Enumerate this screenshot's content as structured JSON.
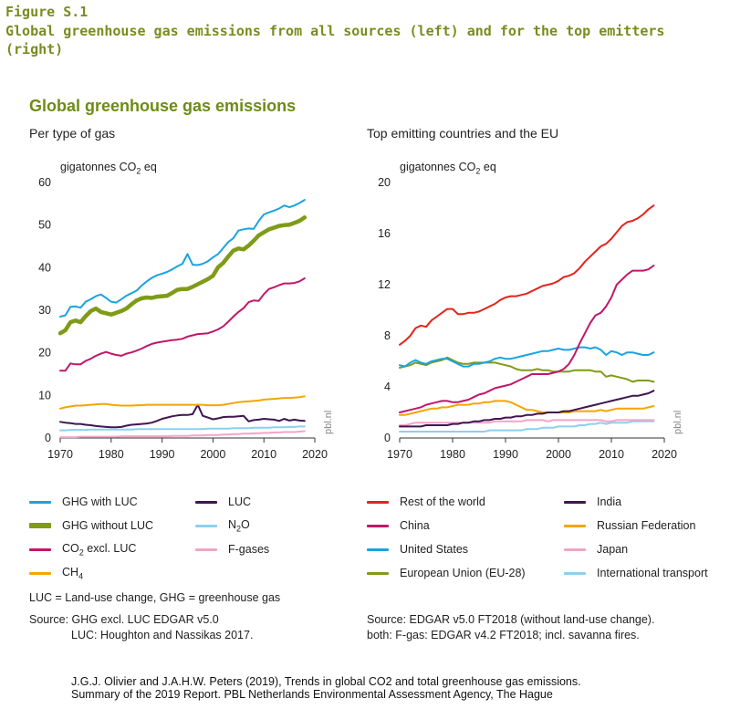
{
  "figure": {
    "label": "Figure S.1",
    "title": "Global greenhouse gas emissions from all sources (left) and for the top emitters (right)"
  },
  "section_title": "Global greenhouse gas emissions",
  "left": {
    "subtitle": "Per type of gas",
    "units_prefix": "gigatonnes CO",
    "units_sub": "2",
    "units_suffix": " eq",
    "watermark": "pbl.nl"
  },
  "right": {
    "subtitle": "Top emitting countries and the EU",
    "units_prefix": "gigatonnes CO",
    "units_sub": "2",
    "units_suffix": " eq",
    "watermark": "pbl.nl"
  },
  "chart_data": [
    {
      "type": "line",
      "title": "Per type of gas",
      "ylabel": "gigatonnes CO2 eq",
      "xlim": [
        1970,
        2020
      ],
      "ylim": [
        0,
        60
      ],
      "xticks": [
        1970,
        1980,
        1990,
        2000,
        2010,
        2020
      ],
      "yticks": [
        0,
        10,
        20,
        30,
        40,
        50,
        60
      ],
      "grid": false,
      "legend": "below",
      "x": [
        1970,
        1971,
        1972,
        1973,
        1974,
        1975,
        1976,
        1977,
        1978,
        1979,
        1980,
        1981,
        1982,
        1983,
        1984,
        1985,
        1986,
        1987,
        1988,
        1989,
        1990,
        1991,
        1992,
        1993,
        1994,
        1995,
        1996,
        1997,
        1998,
        1999,
        2000,
        2001,
        2002,
        2003,
        2004,
        2005,
        2006,
        2007,
        2008,
        2009,
        2010,
        2011,
        2012,
        2013,
        2014,
        2015,
        2016,
        2017,
        2018
      ],
      "series": [
        {
          "name": "GHG with LUC",
          "color": "#1ba3de",
          "values": [
            28.5,
            28.8,
            30.8,
            30.9,
            30.6,
            32.0,
            32.6,
            33.3,
            33.7,
            32.9,
            32.0,
            31.8,
            32.6,
            33.4,
            34.0,
            34.6,
            35.8,
            36.8,
            37.6,
            38.2,
            38.6,
            39.0,
            39.6,
            40.3,
            40.9,
            43.2,
            40.7,
            40.6,
            40.9,
            41.5,
            42.4,
            43.2,
            44.6,
            46.0,
            46.9,
            48.7,
            49.0,
            49.2,
            49.1,
            51.0,
            52.5,
            53.0,
            53.4,
            53.9,
            54.6,
            54.2,
            54.6,
            55.2,
            55.9
          ]
        },
        {
          "name": "GHG without LUC",
          "color": "#7f9b17",
          "width": "thick",
          "values": [
            24.6,
            25.3,
            27.2,
            27.6,
            27.2,
            28.6,
            29.8,
            30.4,
            29.6,
            29.3,
            29.0,
            29.4,
            29.8,
            30.4,
            31.4,
            32.3,
            32.8,
            33.0,
            32.9,
            33.2,
            33.3,
            33.4,
            34.1,
            34.8,
            35.0,
            35.0,
            35.5,
            36.1,
            36.7,
            37.3,
            38.1,
            40.1,
            41.1,
            42.6,
            44.0,
            44.5,
            44.3,
            45.2,
            46.3,
            47.6,
            48.3,
            49.0,
            49.4,
            49.8,
            50.0,
            50.1,
            50.5,
            51.0,
            51.8
          ]
        },
        {
          "name": "CO2 excl. LUC",
          "label_main": "CO",
          "label_sub": "2",
          "label_suffix": " excl. LUC",
          "color": "#c2166a",
          "values": [
            15.8,
            15.8,
            17.5,
            17.3,
            17.3,
            18.1,
            18.6,
            19.3,
            19.8,
            20.2,
            19.8,
            19.5,
            19.3,
            19.8,
            20.1,
            20.5,
            21.0,
            21.6,
            22.1,
            22.4,
            22.6,
            22.8,
            23.0,
            23.1,
            23.3,
            23.8,
            24.1,
            24.4,
            24.5,
            24.6,
            25.0,
            25.5,
            26.2,
            27.3,
            28.5,
            29.6,
            30.5,
            31.9,
            32.3,
            32.2,
            33.8,
            35.0,
            35.4,
            35.9,
            36.3,
            36.3,
            36.4,
            36.8,
            37.5
          ]
        },
        {
          "name": "CH4",
          "label_main": "CH",
          "label_sub": "4",
          "label_suffix": "",
          "color": "#f5a500",
          "values": [
            6.9,
            7.2,
            7.4,
            7.6,
            7.6,
            7.7,
            7.8,
            7.9,
            8.0,
            8.0,
            7.8,
            7.7,
            7.6,
            7.6,
            7.6,
            7.7,
            7.7,
            7.8,
            7.8,
            7.8,
            7.8,
            7.8,
            7.8,
            7.8,
            7.8,
            7.8,
            7.8,
            7.8,
            7.8,
            7.7,
            7.7,
            7.7,
            7.8,
            8.0,
            8.2,
            8.4,
            8.5,
            8.6,
            8.7,
            8.8,
            9.0,
            9.1,
            9.2,
            9.3,
            9.4,
            9.4,
            9.5,
            9.6,
            9.8
          ]
        },
        {
          "name": "LUC",
          "color": "#3e1651",
          "values": [
            3.8,
            3.6,
            3.5,
            3.3,
            3.3,
            3.1,
            3.0,
            2.8,
            2.7,
            2.6,
            2.5,
            2.5,
            2.6,
            2.9,
            3.1,
            3.2,
            3.3,
            3.4,
            3.6,
            4.0,
            4.5,
            4.8,
            5.1,
            5.3,
            5.4,
            5.4,
            5.6,
            7.8,
            5.2,
            4.8,
            4.4,
            4.6,
            4.9,
            5.0,
            5.0,
            5.1,
            5.2,
            3.9,
            4.2,
            4.3,
            4.5,
            4.4,
            4.3,
            4.0,
            4.5,
            4.1,
            4.3,
            4.1,
            4.0
          ]
        },
        {
          "name": "N2O",
          "label_main": "N",
          "label_sub": "2",
          "label_suffix": "O",
          "color": "#8dcfef",
          "values": [
            1.8,
            1.8,
            1.9,
            1.9,
            1.9,
            1.9,
            2.0,
            2.0,
            2.0,
            2.0,
            2.0,
            2.0,
            2.0,
            2.0,
            2.0,
            2.1,
            2.1,
            2.1,
            2.1,
            2.1,
            2.1,
            2.1,
            2.1,
            2.1,
            2.1,
            2.1,
            2.1,
            2.1,
            2.1,
            2.2,
            2.2,
            2.2,
            2.2,
            2.2,
            2.3,
            2.3,
            2.3,
            2.3,
            2.4,
            2.4,
            2.4,
            2.4,
            2.5,
            2.5,
            2.5,
            2.6,
            2.6,
            2.7,
            2.7
          ]
        },
        {
          "name": "F-gases",
          "color": "#f2a4c8",
          "values": [
            0.2,
            0.2,
            0.2,
            0.2,
            0.3,
            0.3,
            0.3,
            0.3,
            0.3,
            0.3,
            0.3,
            0.3,
            0.4,
            0.4,
            0.4,
            0.4,
            0.4,
            0.4,
            0.4,
            0.4,
            0.4,
            0.4,
            0.5,
            0.5,
            0.5,
            0.5,
            0.6,
            0.6,
            0.6,
            0.7,
            0.7,
            0.7,
            0.8,
            0.8,
            0.9,
            0.9,
            1.0,
            1.0,
            1.1,
            1.1,
            1.2,
            1.2,
            1.3,
            1.3,
            1.4,
            1.4,
            1.4,
            1.5,
            1.6
          ]
        }
      ]
    },
    {
      "type": "line",
      "title": "Top emitting countries and the EU",
      "ylabel": "gigatonnes CO2 eq",
      "xlim": [
        1970,
        2020
      ],
      "ylim": [
        0,
        20
      ],
      "xticks": [
        1970,
        1980,
        1990,
        2000,
        2010,
        2020
      ],
      "yticks": [
        0,
        4,
        8,
        12,
        16,
        20
      ],
      "grid": false,
      "legend": "below",
      "x": [
        1970,
        1971,
        1972,
        1973,
        1974,
        1975,
        1976,
        1977,
        1978,
        1979,
        1980,
        1981,
        1982,
        1983,
        1984,
        1985,
        1986,
        1987,
        1988,
        1989,
        1990,
        1991,
        1992,
        1993,
        1994,
        1995,
        1996,
        1997,
        1998,
        1999,
        2000,
        2001,
        2002,
        2003,
        2004,
        2005,
        2006,
        2007,
        2008,
        2009,
        2010,
        2011,
        2012,
        2013,
        2014,
        2015,
        2016,
        2017,
        2018
      ],
      "series": [
        {
          "name": "Rest of the world",
          "color": "#e3241b",
          "values": [
            7.3,
            7.6,
            8.0,
            8.6,
            8.8,
            8.7,
            9.2,
            9.5,
            9.8,
            10.1,
            10.1,
            9.7,
            9.7,
            9.8,
            9.8,
            9.9,
            10.1,
            10.3,
            10.5,
            10.8,
            11.0,
            11.1,
            11.1,
            11.2,
            11.3,
            11.5,
            11.7,
            11.9,
            12.0,
            12.1,
            12.3,
            12.6,
            12.7,
            12.9,
            13.3,
            13.8,
            14.2,
            14.6,
            15.0,
            15.2,
            15.6,
            16.1,
            16.6,
            16.9,
            17.0,
            17.2,
            17.5,
            17.9,
            18.2
          ]
        },
        {
          "name": "China",
          "color": "#c2166a",
          "values": [
            2.0,
            2.1,
            2.2,
            2.3,
            2.4,
            2.6,
            2.7,
            2.8,
            2.9,
            2.9,
            2.8,
            2.8,
            2.9,
            3.0,
            3.2,
            3.4,
            3.5,
            3.7,
            3.9,
            4.0,
            4.1,
            4.2,
            4.4,
            4.6,
            4.8,
            5.0,
            5.0,
            5.0,
            5.0,
            5.1,
            5.2,
            5.4,
            5.8,
            6.5,
            7.4,
            8.2,
            9.0,
            9.6,
            9.8,
            10.3,
            11.0,
            12.0,
            12.4,
            12.8,
            13.1,
            13.1,
            13.1,
            13.2,
            13.5
          ]
        },
        {
          "name": "United States",
          "color": "#1ba3de",
          "values": [
            5.7,
            5.6,
            5.9,
            6.1,
            5.9,
            5.8,
            6.0,
            6.1,
            6.2,
            6.2,
            6.0,
            5.8,
            5.6,
            5.6,
            5.8,
            5.8,
            5.9,
            6.0,
            6.2,
            6.3,
            6.2,
            6.2,
            6.3,
            6.4,
            6.5,
            6.6,
            6.7,
            6.8,
            6.8,
            6.9,
            7.0,
            6.9,
            6.9,
            7.0,
            7.1,
            7.1,
            7.0,
            7.1,
            6.9,
            6.5,
            6.8,
            6.7,
            6.5,
            6.7,
            6.7,
            6.6,
            6.5,
            6.5,
            6.7
          ]
        },
        {
          "name": "European Union (EU-28)",
          "color": "#7f9b17",
          "values": [
            5.5,
            5.6,
            5.7,
            5.9,
            5.8,
            5.7,
            5.9,
            6.0,
            6.1,
            6.3,
            6.1,
            5.9,
            5.8,
            5.8,
            5.9,
            5.9,
            5.9,
            5.9,
            5.9,
            5.8,
            5.7,
            5.6,
            5.4,
            5.3,
            5.3,
            5.3,
            5.4,
            5.3,
            5.3,
            5.2,
            5.2,
            5.2,
            5.2,
            5.3,
            5.3,
            5.3,
            5.3,
            5.2,
            5.2,
            4.8,
            4.9,
            4.8,
            4.7,
            4.6,
            4.4,
            4.5,
            4.5,
            4.5,
            4.4
          ]
        },
        {
          "name": "India",
          "color": "#3e1651",
          "values": [
            0.9,
            0.9,
            0.9,
            0.9,
            0.9,
            1.0,
            1.0,
            1.0,
            1.0,
            1.0,
            1.1,
            1.1,
            1.2,
            1.2,
            1.3,
            1.3,
            1.4,
            1.4,
            1.5,
            1.5,
            1.6,
            1.6,
            1.7,
            1.7,
            1.8,
            1.8,
            1.9,
            1.9,
            2.0,
            2.0,
            2.0,
            2.1,
            2.1,
            2.2,
            2.3,
            2.4,
            2.5,
            2.6,
            2.7,
            2.8,
            2.9,
            3.0,
            3.1,
            3.2,
            3.3,
            3.3,
            3.4,
            3.5,
            3.7
          ]
        },
        {
          "name": "Russian Federation",
          "color": "#f5a500",
          "values": [
            1.8,
            1.8,
            1.9,
            2.0,
            2.1,
            2.2,
            2.3,
            2.3,
            2.4,
            2.4,
            2.5,
            2.6,
            2.6,
            2.6,
            2.7,
            2.7,
            2.8,
            2.8,
            2.9,
            2.9,
            2.9,
            2.8,
            2.6,
            2.4,
            2.2,
            2.2,
            2.1,
            2.0,
            2.0,
            2.0,
            2.0,
            2.0,
            2.0,
            2.1,
            2.1,
            2.1,
            2.1,
            2.1,
            2.2,
            2.1,
            2.2,
            2.3,
            2.3,
            2.3,
            2.3,
            2.3,
            2.3,
            2.4,
            2.5
          ]
        },
        {
          "name": "Japan",
          "color": "#f2a4c8",
          "values": [
            1.0,
            1.0,
            1.1,
            1.2,
            1.2,
            1.2,
            1.2,
            1.2,
            1.2,
            1.2,
            1.2,
            1.2,
            1.2,
            1.2,
            1.2,
            1.2,
            1.2,
            1.2,
            1.3,
            1.3,
            1.3,
            1.3,
            1.3,
            1.3,
            1.4,
            1.4,
            1.4,
            1.4,
            1.3,
            1.4,
            1.4,
            1.4,
            1.4,
            1.4,
            1.4,
            1.4,
            1.4,
            1.4,
            1.4,
            1.3,
            1.3,
            1.4,
            1.4,
            1.4,
            1.4,
            1.4,
            1.4,
            1.4,
            1.4
          ]
        },
        {
          "name": "International transport",
          "color": "#8dcfef",
          "values": [
            0.5,
            0.5,
            0.5,
            0.5,
            0.5,
            0.5,
            0.5,
            0.5,
            0.5,
            0.5,
            0.5,
            0.5,
            0.5,
            0.5,
            0.5,
            0.5,
            0.5,
            0.6,
            0.6,
            0.6,
            0.6,
            0.6,
            0.6,
            0.6,
            0.7,
            0.7,
            0.7,
            0.8,
            0.8,
            0.8,
            0.9,
            0.9,
            0.9,
            0.9,
            1.0,
            1.0,
            1.1,
            1.1,
            1.2,
            1.1,
            1.2,
            1.2,
            1.2,
            1.2,
            1.3,
            1.3,
            1.3,
            1.3,
            1.3
          ]
        }
      ]
    }
  ],
  "notes": {
    "luc_definition": "LUC = Land-use change, GHG = greenhouse gas",
    "left_source_1": "Source: GHG excl. LUC EDGAR v5.0",
    "left_source_2": "LUC: Houghton and Nassikas 2017.",
    "right_source_1": "Source: EDGAR v5.0 FT2018 (without land-use change).",
    "right_source_2": "both: F-gas: EDGAR v4.2 FT2018; incl. savanna fires."
  },
  "citation": {
    "line1": "J.G.J. Olivier and J.A.H.W. Peters (2019), Trends in global CO2 and total greenhouse gas emissions.",
    "line2": "Summary of the 2019 Report.  PBL Netherlands Environmental Assessment Agency,    The Hague"
  }
}
